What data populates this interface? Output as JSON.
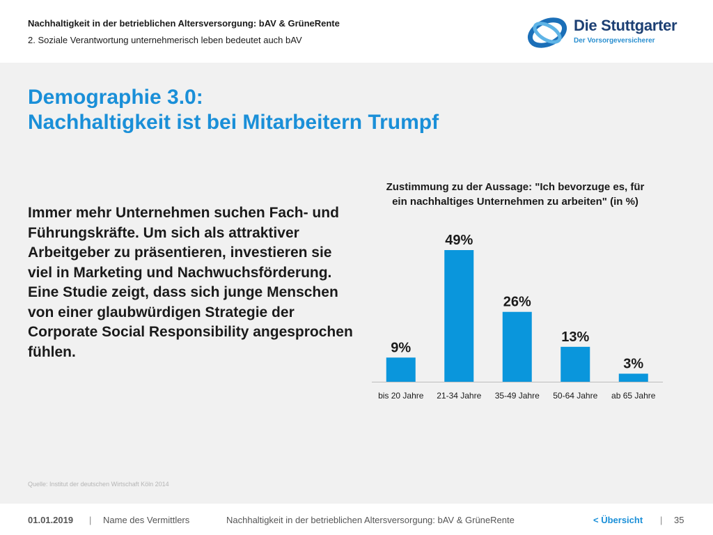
{
  "header": {
    "topic": "Nachhaltigkeit in der betrieblichen Altersversorgung: bAV & GrüneRente",
    "section": "2. Soziale Verantwortung unternehmerisch leben bedeutet auch bAV",
    "logo_name": "Die Stuttgarter",
    "logo_tagline": "Der Vorsorgeversicherer"
  },
  "title": {
    "line1": "Demographie 3.0:",
    "line2": "Nachhaltigkeit ist bei Mitarbeitern Trumpf"
  },
  "body_text": "Immer mehr Unternehmen suchen Fach- und Führungskräfte. Um sich als attraktiver Arbeitgeber zu präsentieren, investieren sie viel in Marketing und Nachwuchsförderung. Eine Studie zeigt, dass sich junge Menschen von einer glaubwürdigen Strategie der Corporate Social Responsibility angesprochen fühlen.",
  "chart_data": {
    "type": "bar",
    "title_line1": "Zustimmung zu der Aussage: \"Ich bevorzuge es, für",
    "title_line2": "ein nachhaltiges Unternehmen zu arbeiten\" (in %)",
    "categories": [
      "bis 20 Jahre",
      "21-34 Jahre",
      "35-49 Jahre",
      "50-64 Jahre",
      "ab 65 Jahre"
    ],
    "values": [
      9,
      49,
      26,
      13,
      3
    ],
    "value_labels": [
      "9%",
      "49%",
      "26%",
      "13%",
      "3%"
    ],
    "ylim": [
      0,
      49
    ],
    "bar_color": "#0a96dc",
    "grid": false,
    "legend": "none"
  },
  "source": "Quelle: Institut der deutschen Wirtschaft Köln 2014",
  "footer": {
    "date": "01.01.2019",
    "separator": "|",
    "agent": "Name des Vermittlers",
    "topic": "Nachhaltigkeit in der betrieblichen Altersversorgung: bAV & GrüneRente",
    "overview_link": "< Übersicht",
    "page": "35"
  }
}
